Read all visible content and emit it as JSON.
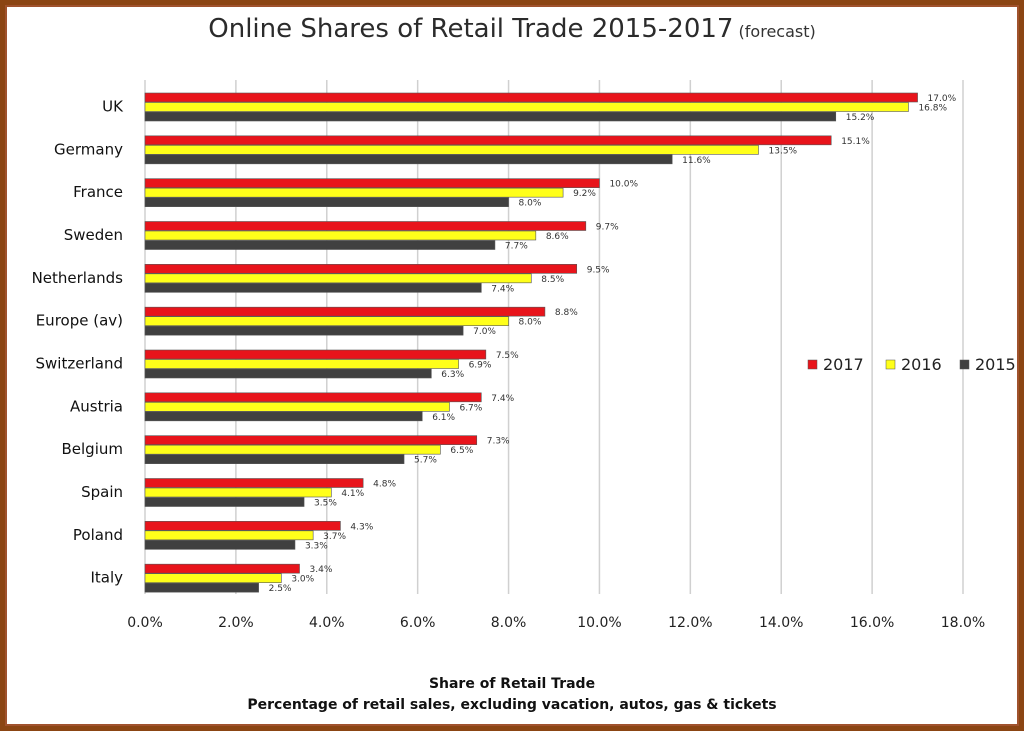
{
  "chart_data": {
    "type": "bar",
    "orientation": "horizontal",
    "title": "Online Shares of Retail Trade 2015-2017",
    "subtitle": "(forecast)",
    "xlabel": "Share of Retail Trade",
    "xlabel_sub": "Percentage of retail sales, excluding vacation, autos, gas & tickets",
    "ylabel": "",
    "xlim": [
      0,
      18
    ],
    "xticks": [
      "0.0%",
      "2.0%",
      "4.0%",
      "6.0%",
      "8.0%",
      "10.0%",
      "12.0%",
      "14.0%",
      "16.0%",
      "18.0%"
    ],
    "grid": true,
    "legend_position": "right",
    "categories": [
      "UK",
      "Germany",
      "France",
      "Sweden",
      "Netherlands",
      "Europe (av)",
      "Switzerland",
      "Austria",
      "Belgium",
      "Spain",
      "Poland",
      "Italy"
    ],
    "series": [
      {
        "name": "2017",
        "color": "#e8141b",
        "values": [
          17.0,
          15.1,
          10.0,
          9.7,
          9.5,
          8.8,
          7.5,
          7.4,
          7.3,
          4.8,
          4.3,
          3.4
        ],
        "labels": [
          "17.0%",
          "15.1%",
          "10.0%",
          "9.7%",
          "9.5%",
          "8.8%",
          "7.5%",
          "7.4%",
          "7.3%",
          "4.8%",
          "4.3%",
          "3.4%"
        ]
      },
      {
        "name": "2016",
        "color": "#ffff1a",
        "values": [
          16.8,
          13.5,
          9.2,
          8.6,
          8.5,
          8.0,
          6.9,
          6.7,
          6.5,
          4.1,
          3.7,
          3.0
        ],
        "labels": [
          "16.8%",
          "13.5%",
          "9.2%",
          "8.6%",
          "8.5%",
          "8.0%",
          "6.9%",
          "6.7%",
          "6.5%",
          "4.1%",
          "3.7%",
          "3.0%"
        ]
      },
      {
        "name": "2015",
        "color": "#404040",
        "values": [
          15.2,
          11.6,
          8.0,
          7.7,
          7.4,
          7.0,
          6.3,
          6.1,
          5.7,
          3.5,
          3.3,
          2.5
        ],
        "labels": [
          "15.2%",
          "11.6%",
          "8.0%",
          "7.7%",
          "7.4%",
          "7.0%",
          "6.3%",
          "6.1%",
          "5.7%",
          "3.5%",
          "3.3%",
          "2.5%"
        ]
      }
    ]
  },
  "colors": {
    "frame": "#8b4513",
    "grid": "#d0d0d0"
  }
}
